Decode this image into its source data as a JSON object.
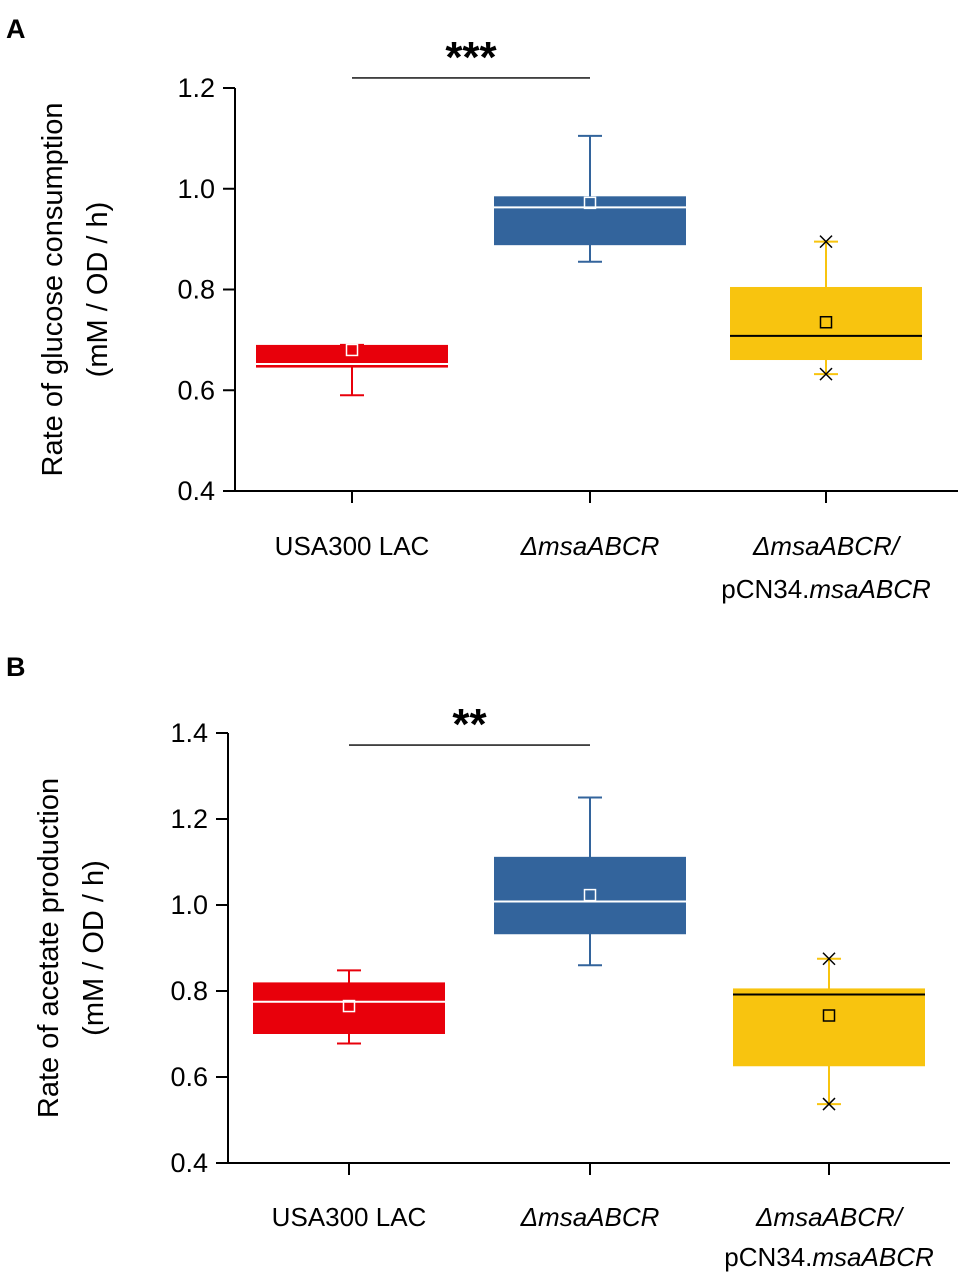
{
  "chart_data": [
    {
      "type": "box",
      "panel": "A",
      "ylabel_line1": "Rate of glucose consumption",
      "ylabel_line2": "(mM / OD / h)",
      "ylim": [
        0.4,
        1.2
      ],
      "yticks": [
        0.4,
        0.6,
        0.8,
        1.0,
        1.2
      ],
      "ytick_labels": [
        "0.4",
        "0.6",
        "0.8",
        "1.0",
        "1.2"
      ],
      "categories": [
        {
          "line1": "USA300 LAC",
          "line1_italic": false,
          "line2": "",
          "line2_italic": ""
        },
        {
          "line1": "ΔmsaABCR",
          "line1_italic": true,
          "line2": "",
          "line2_italic": ""
        },
        {
          "line1": "ΔmsaABCR/",
          "line1_italic": true,
          "line2": "pCN34.",
          "line2_italic": "msaABCR"
        }
      ],
      "boxes": [
        {
          "name": "USA300 LAC",
          "color": "#e8000b",
          "median_color": "#ffffff",
          "mean_color": "#ffffff",
          "whisker_low": 0.59,
          "q1": 0.645,
          "median": 0.652,
          "q3": 0.69,
          "whisker_high": 0.69,
          "mean": 0.68,
          "outlier_markers": false
        },
        {
          "name": "ΔmsaABCR",
          "color": "#33649c",
          "median_color": "#ffffff",
          "mean_color": "#ffffff",
          "whisker_low": 0.855,
          "q1": 0.888,
          "median": 0.963,
          "q3": 0.985,
          "whisker_high": 1.105,
          "mean": 0.972,
          "outlier_markers": false
        },
        {
          "name": "ΔmsaABCR/pCN34.msaABCR",
          "color": "#f8c40f",
          "median_color": "#000000",
          "mean_color": "#000000",
          "whisker_low": 0.632,
          "q1": 0.66,
          "median": 0.708,
          "q3": 0.805,
          "whisker_high": 0.895,
          "mean": 0.735,
          "outlier_markers": true
        }
      ],
      "significance": {
        "label": "***",
        "from": 0,
        "to": 1,
        "y": 1.22
      }
    },
    {
      "type": "box",
      "panel": "B",
      "ylabel_line1": "Rate of acetate production",
      "ylabel_line2": "(mM / OD / h)",
      "ylim": [
        0.4,
        1.4
      ],
      "yticks": [
        0.4,
        0.6,
        0.8,
        1.0,
        1.2,
        1.4
      ],
      "ytick_labels": [
        "0.4",
        "0.6",
        "0.8",
        "1.0",
        "1.2",
        "1.4"
      ],
      "categories": [
        {
          "line1": "USA300 LAC",
          "line1_italic": false,
          "line2": "",
          "line2_italic": ""
        },
        {
          "line1": "ΔmsaABCR",
          "line1_italic": true,
          "line2": "",
          "line2_italic": ""
        },
        {
          "line1": "ΔmsaABCR/",
          "line1_italic": true,
          "line2": "pCN34.",
          "line2_italic": "msaABCR"
        }
      ],
      "boxes": [
        {
          "name": "USA300 LAC",
          "color": "#e8000b",
          "median_color": "#ffffff",
          "mean_color": "#ffffff",
          "whisker_low": 0.678,
          "q1": 0.7,
          "median": 0.775,
          "q3": 0.82,
          "whisker_high": 0.848,
          "mean": 0.765,
          "outlier_markers": false
        },
        {
          "name": "ΔmsaABCR",
          "color": "#33649c",
          "median_color": "#ffffff",
          "mean_color": "#ffffff",
          "whisker_low": 0.86,
          "q1": 0.932,
          "median": 1.008,
          "q3": 1.112,
          "whisker_high": 1.25,
          "mean": 1.023,
          "outlier_markers": false
        },
        {
          "name": "ΔmsaABCR/pCN34.msaABCR",
          "color": "#f8c40f",
          "median_color": "#000000",
          "mean_color": "#000000",
          "whisker_low": 0.537,
          "q1": 0.625,
          "median": 0.792,
          "q3": 0.806,
          "whisker_high": 0.875,
          "mean": 0.743,
          "outlier_markers": true
        }
      ],
      "significance": {
        "label": "**",
        "from": 0,
        "to": 1,
        "y": 1.372
      }
    }
  ]
}
